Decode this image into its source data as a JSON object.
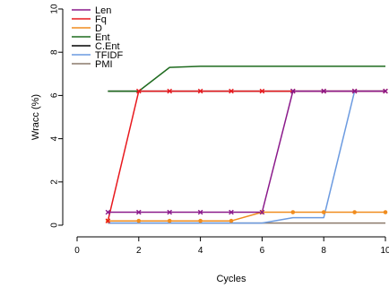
{
  "chart_data": {
    "type": "line",
    "xlabel": "Cycles",
    "ylabel": "Wracc (%)",
    "xlim": [
      0,
      10
    ],
    "ylim": [
      0,
      10
    ],
    "x_ticks": [
      0,
      2,
      4,
      6,
      8,
      10
    ],
    "y_ticks": [
      0,
      2,
      4,
      6,
      8,
      10
    ],
    "grid": false,
    "legend_position": "top-left",
    "series": [
      {
        "name": "Len",
        "color": "#8b1a8b",
        "marker": "x",
        "x": [
          1,
          2,
          3,
          4,
          5,
          6,
          7,
          8,
          9,
          10
        ],
        "y": [
          0.6,
          0.6,
          0.6,
          0.6,
          0.6,
          0.6,
          6.2,
          6.2,
          6.2,
          6.2
        ]
      },
      {
        "name": "Fq",
        "color": "#e8191e",
        "marker": "x",
        "x": [
          1,
          2,
          3,
          4,
          5,
          6,
          7,
          8,
          9,
          10
        ],
        "y": [
          0.2,
          6.2,
          6.2,
          6.2,
          6.2,
          6.2,
          6.2,
          6.2,
          6.2,
          6.2
        ]
      },
      {
        "name": "D",
        "color": "#f08c1e",
        "marker": "circle",
        "x": [
          1,
          2,
          3,
          4,
          5,
          6,
          7,
          8,
          9,
          10
        ],
        "y": [
          0.2,
          0.2,
          0.2,
          0.2,
          0.2,
          0.6,
          0.6,
          0.6,
          0.6,
          0.6
        ]
      },
      {
        "name": "Ent",
        "color": "#1f6b1f",
        "marker": "none",
        "x": [
          1,
          2,
          3,
          4,
          5,
          6,
          7,
          8,
          9,
          10
        ],
        "y": [
          6.2,
          6.2,
          7.3,
          7.35,
          7.35,
          7.35,
          7.35,
          7.35,
          7.35,
          7.35
        ]
      },
      {
        "name": "C.Ent",
        "color": "#000000",
        "marker": "none",
        "x": [
          1,
          2,
          3,
          4,
          5,
          6,
          7,
          8,
          9,
          10
        ],
        "y": [
          6.2,
          6.2,
          6.2,
          6.2,
          6.2,
          6.2,
          6.2,
          6.2,
          6.2,
          6.2
        ]
      },
      {
        "name": "TFIDF",
        "color": "#6c9be0",
        "marker": "none",
        "x": [
          1,
          2,
          3,
          4,
          5,
          6,
          7,
          8,
          9,
          10
        ],
        "y": [
          0.1,
          0.1,
          0.1,
          0.1,
          0.1,
          0.1,
          0.35,
          0.35,
          6.2,
          6.2
        ]
      },
      {
        "name": "PMI",
        "color": "#8c7a6b",
        "marker": "none",
        "x": [
          1,
          2,
          3,
          4,
          5,
          6,
          7,
          8,
          9,
          10
        ],
        "y": [
          0.1,
          0.1,
          0.1,
          0.1,
          0.1,
          0.1,
          0.1,
          0.1,
          0.1,
          0.1
        ]
      }
    ]
  }
}
